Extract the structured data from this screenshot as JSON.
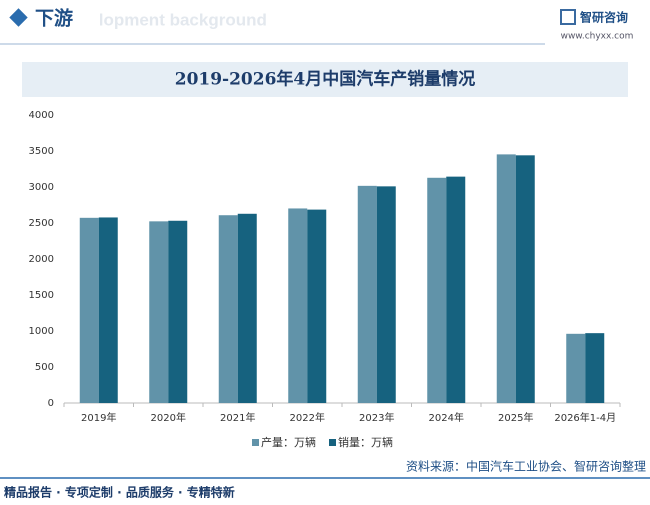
{
  "header": {
    "title": "下游",
    "background_text": "development background",
    "logo": "智研咨询",
    "url": "www.chyxx.com"
  },
  "chart_data": {
    "type": "bar",
    "title": "2019-2026年4月中国汽车产销量情况",
    "categories": [
      "2019年",
      "2020年",
      "2021年",
      "2022年",
      "2023年",
      "2024年",
      "2025年",
      "2026年1-4月"
    ],
    "series": [
      {
        "name": "产量：万辆",
        "color": "#6193a9",
        "values": [
          2572,
          2523,
          2608,
          2702,
          3016,
          3128,
          3453,
          961
        ]
      },
      {
        "name": "销量：万辆",
        "color": "#16627f",
        "values": [
          2577,
          2531,
          2628,
          2686,
          3009,
          3144,
          3440,
          970
        ]
      }
    ],
    "ylim": [
      0,
      4000
    ],
    "yticks": [
      0,
      500,
      1000,
      1500,
      2000,
      2500,
      3000,
      3500,
      4000
    ],
    "grid": false,
    "legend": "bottom"
  },
  "footer": {
    "slogan": "精品报告 · 专项定制 · 品质服务 · 专精特新",
    "source": "资料来源：中国汽车工业协会、智研咨询整理"
  }
}
